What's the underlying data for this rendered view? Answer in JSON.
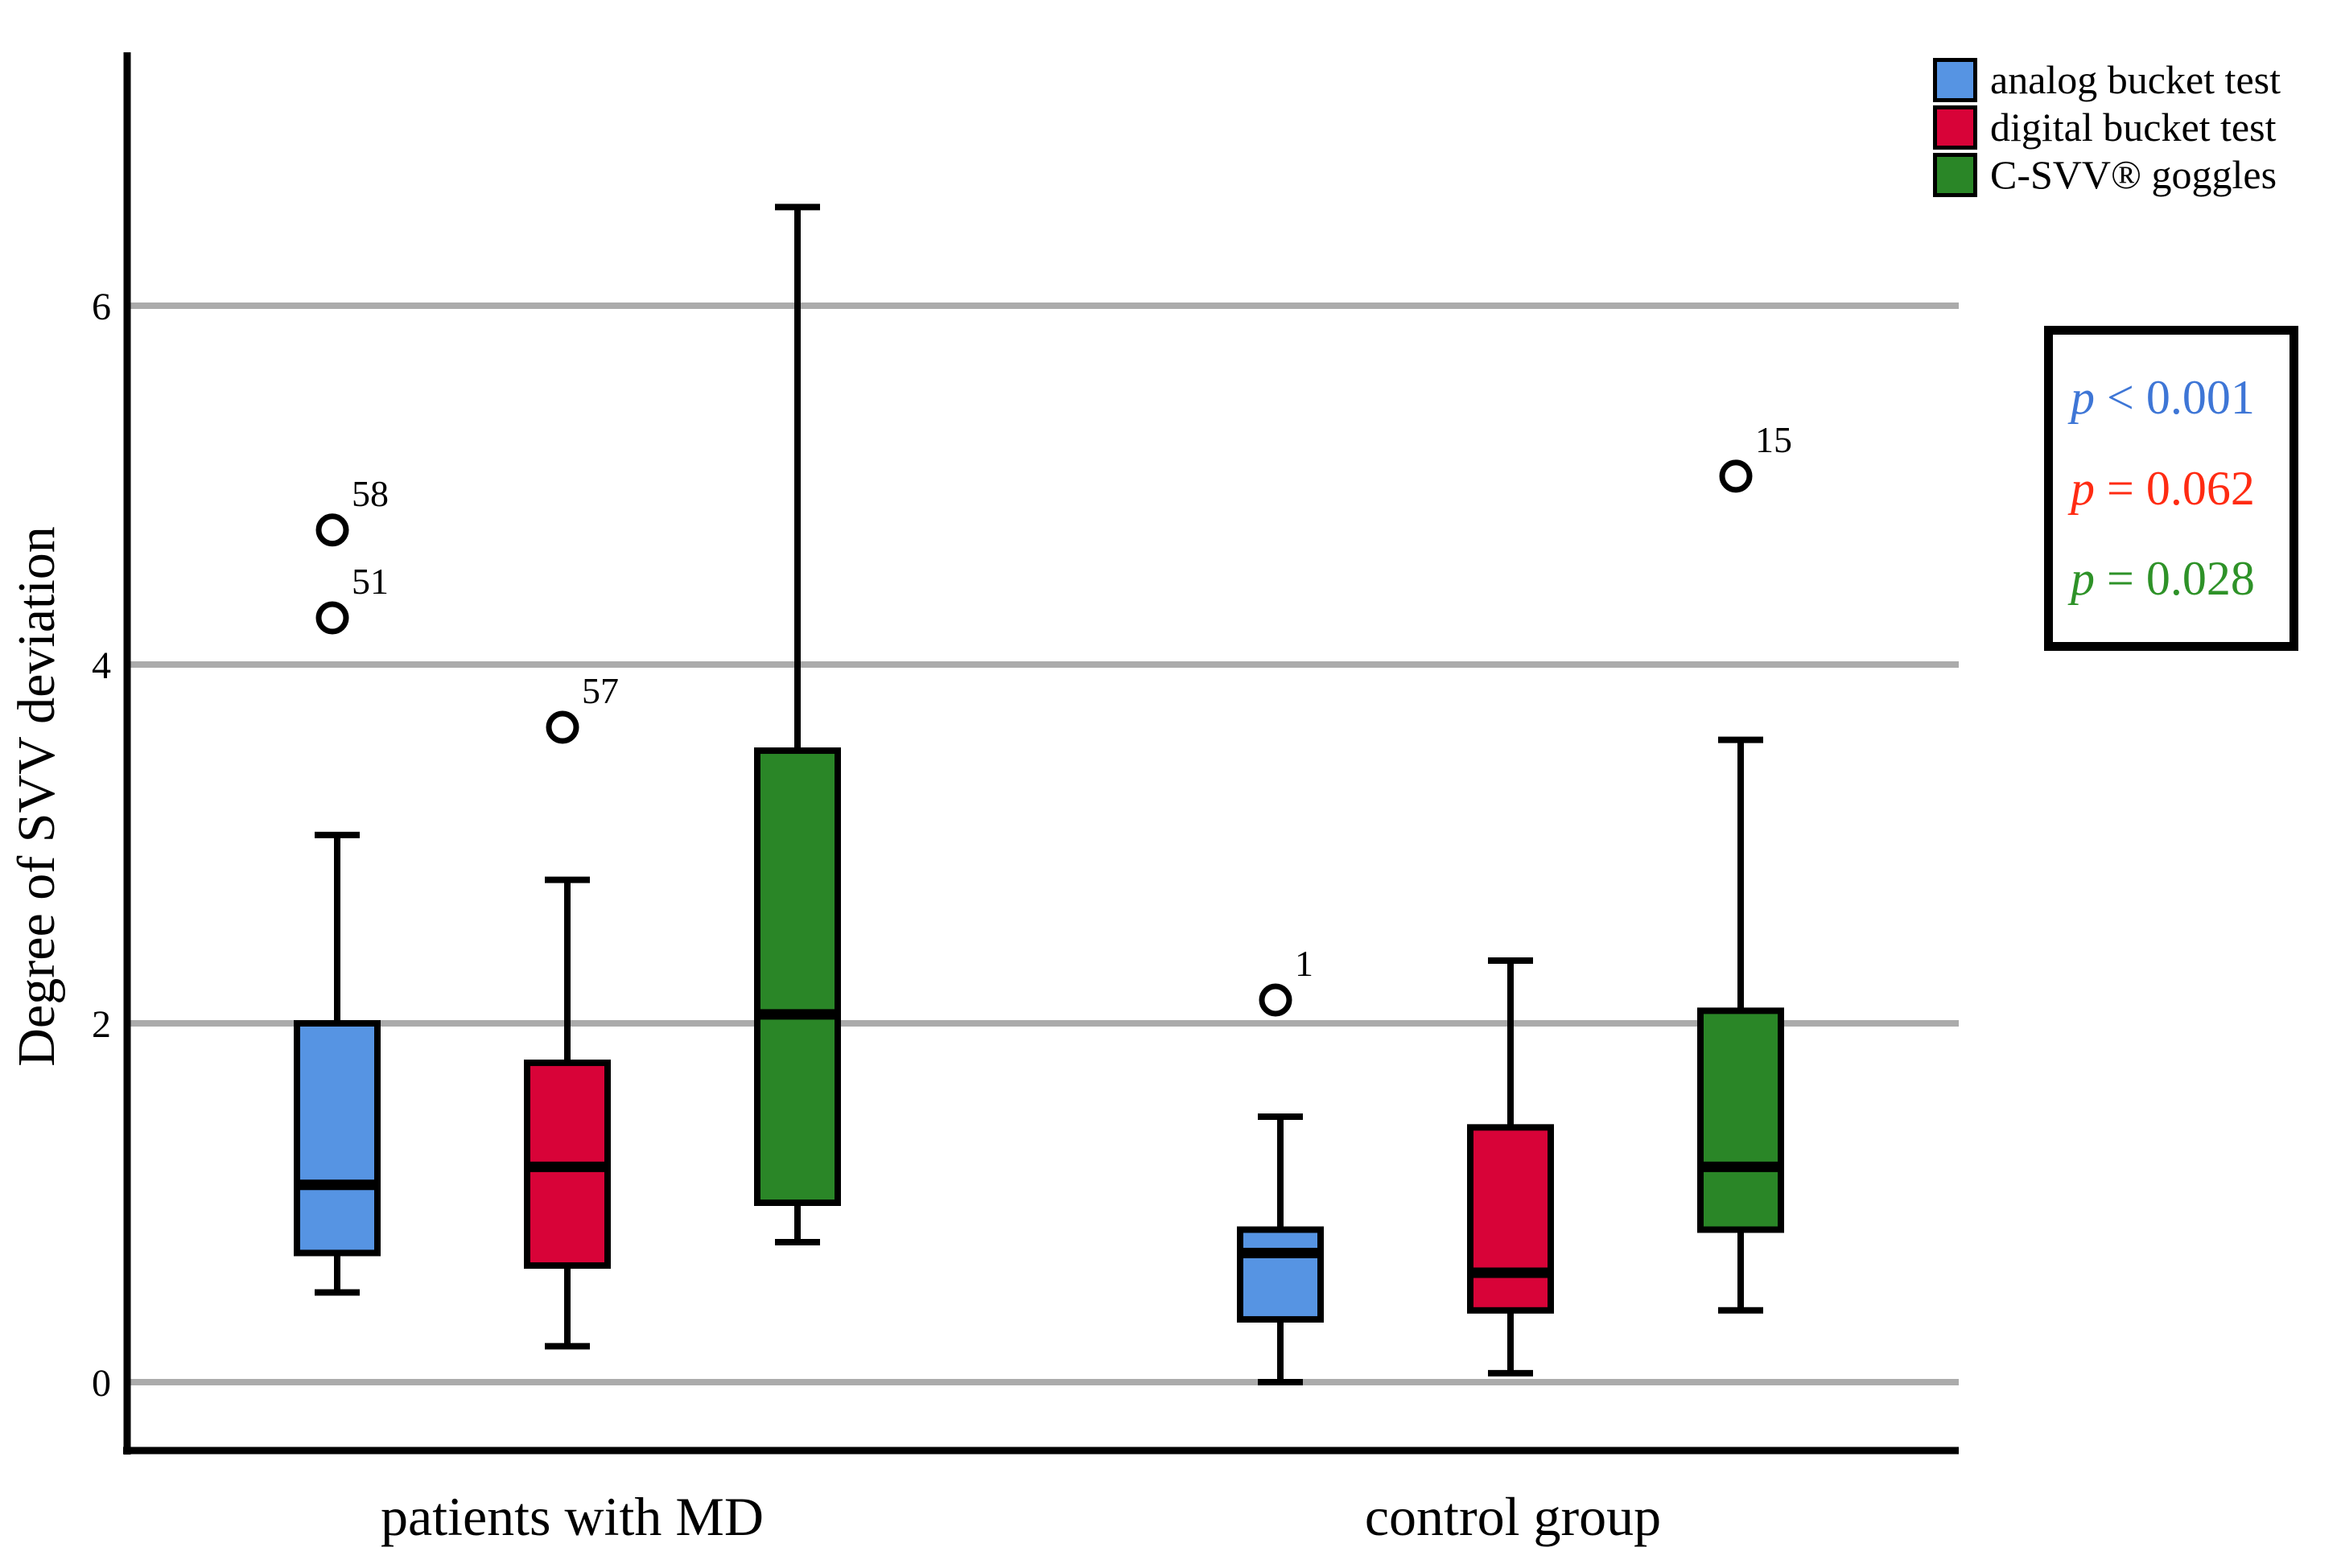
{
  "legend": {
    "items": [
      {
        "label": "analog bucket test",
        "color": "#5694E3"
      },
      {
        "label": "digital bucket test",
        "color": "#D80338"
      },
      {
        "label": "C-SVV® goggles",
        "color": "#2A8627"
      }
    ]
  },
  "stats_box": {
    "rows": [
      {
        "p": "p",
        "text": " < 0.001",
        "color": "#3E76D6"
      },
      {
        "p": "p",
        "text": " = 0.062",
        "color": "#FF2B12"
      },
      {
        "p": "p",
        "text": " = 0.028",
        "color": "#2E9228"
      }
    ]
  },
  "chart_data": {
    "type": "boxplot",
    "title": "",
    "xlabel": "",
    "ylabel": "Degree of SVV deviation",
    "yticks": [
      0,
      2,
      4,
      6
    ],
    "ylim": [
      -0.38,
      7.4
    ],
    "grid": "horizontal",
    "legend_position": "top-right",
    "groups": [
      "patients with MD",
      "control group"
    ],
    "series": [
      {
        "name": "analog bucket test",
        "color": "#5694E3",
        "p_value": "p < 0.001",
        "boxes": [
          {
            "group": "patients with MD",
            "whisker_low": 0.5,
            "q1": 0.72,
            "median": 1.1,
            "q3": 2.0,
            "whisker_high": 3.05,
            "outliers": [
              {
                "label": "58",
                "value": 4.75
              },
              {
                "label": "51",
                "value": 4.26
              }
            ]
          },
          {
            "group": "control group",
            "whisker_low": 0.0,
            "q1": 0.35,
            "median": 0.72,
            "q3": 0.85,
            "whisker_high": 1.48,
            "outliers": [
              {
                "label": "1",
                "value": 2.13
              }
            ]
          }
        ]
      },
      {
        "name": "digital bucket test",
        "color": "#D80338",
        "p_value": "p = 0.062",
        "boxes": [
          {
            "group": "patients with MD",
            "whisker_low": 0.2,
            "q1": 0.65,
            "median": 1.2,
            "q3": 1.78,
            "whisker_high": 2.8,
            "outliers": [
              {
                "label": "57",
                "value": 3.65
              }
            ]
          },
          {
            "group": "control group",
            "whisker_low": 0.05,
            "q1": 0.4,
            "median": 0.61,
            "q3": 1.42,
            "whisker_high": 2.35,
            "outliers": []
          }
        ]
      },
      {
        "name": "C-SVV® goggles",
        "color": "#2A8627",
        "p_value": "p = 0.028",
        "boxes": [
          {
            "group": "patients with MD",
            "whisker_low": 0.78,
            "q1": 1.0,
            "median": 2.05,
            "q3": 3.52,
            "whisker_high": 6.55,
            "outliers": []
          },
          {
            "group": "control group",
            "whisker_low": 0.4,
            "q1": 0.85,
            "median": 1.2,
            "q3": 2.07,
            "whisker_high": 3.58,
            "outliers": [
              {
                "label": "15",
                "value": 5.05
              }
            ]
          }
        ]
      }
    ]
  }
}
